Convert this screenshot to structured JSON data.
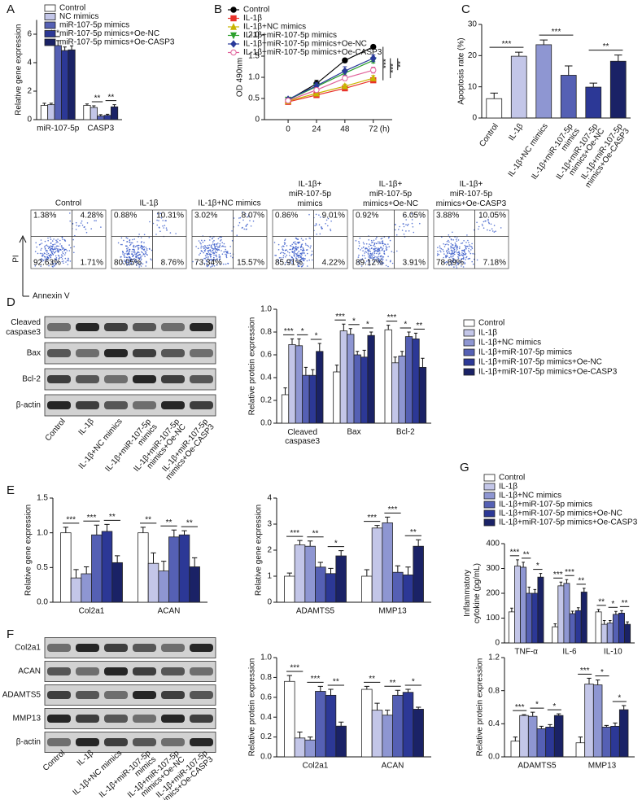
{
  "chart_data": [
    {
      "type": "bar",
      "panel_label": "A",
      "ylabel": "Relative gene expression",
      "categories": [
        "miR-107-5p",
        "CASP3"
      ],
      "series": [
        {
          "name": "Control",
          "color": "#ffffff",
          "values": [
            1.0,
            1.0
          ],
          "errors": [
            0.15,
            0.1
          ]
        },
        {
          "name": "NC mimics",
          "color": "#c3c6e8",
          "values": [
            1.05,
            0.85
          ],
          "errors": [
            0.1,
            0.12
          ]
        },
        {
          "name": "miR-107-5p mimics",
          "color": "#5560b4",
          "values": [
            5.2,
            0.25
          ],
          "errors": [
            0.35,
            0.1
          ]
        },
        {
          "name": "miR-107-5p mimics+Oe-NC",
          "color": "#2c3896",
          "values": [
            4.85,
            0.3
          ],
          "errors": [
            0.25,
            0.08
          ]
        },
        {
          "name": "miR-107-5p mimics+Oe-CASP3",
          "color": "#1a2266",
          "values": [
            4.9,
            0.9
          ],
          "errors": [
            0.28,
            0.15
          ]
        }
      ],
      "ylim": [
        0,
        7
      ],
      "yticks": [
        0,
        2,
        4,
        6
      ],
      "legend": "upper left",
      "annotations": [
        [
          null,
          "***",
          null
        ],
        [
          null,
          "**",
          "**"
        ]
      ]
    },
    {
      "type": "line",
      "panel_label": "B",
      "ylabel": "OD 490nm",
      "xlabel": "(h)",
      "x": [
        0,
        24,
        48,
        72
      ],
      "series": [
        {
          "name": "Control",
          "color": "#000000",
          "marker": "circle",
          "values": [
            0.46,
            0.85,
            1.4,
            1.72
          ],
          "errors": [
            0.03,
            0.08,
            0.05,
            0.04
          ]
        },
        {
          "name": "IL-1β",
          "color": "#e8322a",
          "marker": "square",
          "values": [
            0.42,
            0.58,
            0.74,
            0.93
          ],
          "errors": [
            0.02,
            0.04,
            0.05,
            0.05
          ]
        },
        {
          "name": "IL-1β+NC mimics",
          "color": "#c8b400",
          "marker": "triangle",
          "values": [
            0.44,
            0.62,
            0.79,
            0.98
          ],
          "errors": [
            0.03,
            0.05,
            0.05,
            0.06
          ]
        },
        {
          "name": "IL-1β+miR-107-5p mimics",
          "color": "#2ca02c",
          "marker": "triangle-down",
          "values": [
            0.47,
            0.78,
            1.1,
            1.4
          ],
          "errors": [
            0.03,
            0.06,
            0.08,
            0.06
          ]
        },
        {
          "name": "IL-1β+miR-107-5p mimics+Oe-NC",
          "color": "#2a3a9a",
          "marker": "diamond",
          "values": [
            0.48,
            0.8,
            1.15,
            1.45
          ],
          "errors": [
            0.03,
            0.07,
            0.1,
            0.08
          ]
        },
        {
          "name": "IL-1β+miR-107-5p mimics+Oe-CASP3",
          "color": "#e0609a",
          "marker": "open-circle",
          "values": [
            0.45,
            0.7,
            0.98,
            1.17
          ],
          "errors": [
            0.03,
            0.05,
            0.06,
            0.07
          ]
        }
      ],
      "xlim": [
        -20,
        88
      ],
      "xticks": [
        0,
        24,
        48,
        72
      ],
      "ylim": [
        0,
        2
      ],
      "yticks": [
        0,
        0.5,
        {
          "value": 1,
          "label": "1.0"
        },
        1.5,
        {
          "value": 2,
          "label": "2.0"
        }
      ],
      "legend": "top",
      "annotations": [
        "***",
        "***",
        "**"
      ]
    },
    {
      "type": "bar",
      "panel_label": "C",
      "ylabel": "Apoptosis rate (%)",
      "categories": [
        "Control",
        "IL-1β",
        "IL-1β+NC mimics",
        [
          "IL-1β+miR-107-5p",
          "mimics"
        ],
        [
          "IL-1β+miR-107-5p",
          "mimics+Oe-NC"
        ],
        [
          "IL-1β+miR-107-5p",
          "mimics+Oe-CASP3"
        ]
      ],
      "values": [
        6.2,
        19.8,
        23.5,
        13.7,
        9.9,
        18.2
      ],
      "errors": [
        1.8,
        1.3,
        1.5,
        3.0,
        1.3,
        2.0
      ],
      "colors": [
        "#ffffff",
        "#c3c6e8",
        "#8e96d2",
        "#5560b4",
        "#2c3896",
        "#1a2266"
      ],
      "ylim": [
        0,
        30
      ],
      "yticks": [
        0,
        10,
        20,
        30
      ],
      "annotations": [
        "***",
        "***",
        "**"
      ]
    },
    {
      "type": "bar",
      "ylabel": "Relative protein expression",
      "categories": [
        [
          "Cleaved",
          "caspase3"
        ],
        "Bax",
        "Bcl-2"
      ],
      "series": [
        {
          "name": "Control",
          "color": "#ffffff",
          "values": [
            0.25,
            0.45,
            0.82
          ],
          "errors": [
            0.06,
            0.06,
            0.04
          ]
        },
        {
          "name": "IL-1β",
          "color": "#c3c6e8",
          "values": [
            0.69,
            0.81,
            0.53
          ],
          "errors": [
            0.05,
            0.06,
            0.05
          ]
        },
        {
          "name": "IL-1β+NC mimics",
          "color": "#8e96d2",
          "values": [
            0.68,
            0.78,
            0.59
          ],
          "errors": [
            0.06,
            0.05,
            0.04
          ]
        },
        {
          "name": "IL-1β+miR-107-5p mimics",
          "color": "#5560b4",
          "values": [
            0.42,
            0.6,
            0.76
          ],
          "errors": [
            0.07,
            0.03,
            0.04
          ]
        },
        {
          "name": "IL-1β+miR-107-5p mimics+Oe-NC",
          "color": "#2c3896",
          "values": [
            0.42,
            0.58,
            0.74
          ],
          "errors": [
            0.05,
            0.06,
            0.05
          ]
        },
        {
          "name": "IL-1β+miR-107-5p mimics+Oe-CASP3",
          "color": "#1a2266",
          "values": [
            0.63,
            0.77,
            0.49
          ],
          "errors": [
            0.07,
            0.03,
            0.08
          ]
        }
      ],
      "ylim": [
        0,
        1
      ],
      "yticks": [
        {
          "value": 0,
          "label": "0.0"
        },
        0.2,
        0.4,
        0.6,
        0.8,
        {
          "value": 1,
          "label": "1.0"
        }
      ],
      "legend": "right",
      "annotations": [
        [
          "***",
          "*",
          "*"
        ],
        [
          "***",
          "*",
          "*"
        ],
        [
          "***",
          "*",
          "**"
        ]
      ]
    },
    {
      "type": "bar",
      "panel_label": "E",
      "ylabel": "Relative gene expression",
      "categories": [
        "Col2a1",
        "ACAN"
      ],
      "series": [
        {
          "color": "#ffffff",
          "values": [
            1.0,
            1.0
          ],
          "errors": [
            0.08,
            0.08
          ]
        },
        {
          "color": "#c3c6e8",
          "values": [
            0.35,
            0.56
          ],
          "errors": [
            0.12,
            0.15
          ]
        },
        {
          "color": "#8e96d2",
          "values": [
            0.41,
            0.45
          ],
          "errors": [
            0.1,
            0.14
          ]
        },
        {
          "color": "#5560b4",
          "values": [
            0.97,
            0.94
          ],
          "errors": [
            0.14,
            0.1
          ]
        },
        {
          "color": "#2c3896",
          "values": [
            1.02,
            0.97
          ],
          "errors": [
            0.1,
            0.06
          ]
        },
        {
          "color": "#1a2266",
          "values": [
            0.57,
            0.51
          ],
          "errors": [
            0.1,
            0.13
          ]
        }
      ],
      "ylim": [
        0,
        1.5
      ],
      "yticks": [
        {
          "value": 0,
          "label": "0.0"
        },
        0.5,
        {
          "value": 1,
          "label": "1.0"
        },
        1.5
      ],
      "annotations": [
        [
          "***",
          "***",
          "**"
        ],
        [
          "**",
          "**",
          "**"
        ]
      ]
    },
    {
      "type": "bar",
      "ylabel": "Relative gene expression",
      "categories": [
        "ADAMTS5",
        "MMP13"
      ],
      "series": [
        {
          "color": "#ffffff",
          "values": [
            1.0,
            1.0
          ],
          "errors": [
            0.12,
            0.25
          ]
        },
        {
          "color": "#c3c6e8",
          "values": [
            2.2,
            2.85
          ],
          "errors": [
            0.17,
            0.1
          ]
        },
        {
          "color": "#8e96d2",
          "values": [
            2.15,
            3.05
          ],
          "errors": [
            0.2,
            0.22
          ]
        },
        {
          "color": "#5560b4",
          "values": [
            1.35,
            1.15
          ],
          "errors": [
            0.18,
            0.25
          ]
        },
        {
          "color": "#2c3896",
          "values": [
            1.1,
            1.05
          ],
          "errors": [
            0.2,
            0.3
          ]
        },
        {
          "color": "#1a2266",
          "values": [
            1.78,
            2.15
          ],
          "errors": [
            0.2,
            0.25
          ]
        }
      ],
      "ylim": [
        0,
        4
      ],
      "yticks": [
        0,
        1,
        2,
        3,
        4
      ],
      "annotations": [
        [
          "***",
          "**",
          "*"
        ],
        [
          "***",
          "***",
          "**"
        ]
      ]
    },
    {
      "type": "bar",
      "panel_label": "G",
      "ylabel": [
        "Inflammatory",
        "cytokine (pg/mL)"
      ],
      "categories": [
        "TNF-α",
        "IL-6",
        "IL-10"
      ],
      "series": [
        {
          "name": "Control",
          "color": "#ffffff",
          "values": [
            125,
            65,
            125
          ],
          "errors": [
            15,
            12,
            10
          ]
        },
        {
          "name": "IL-1β",
          "color": "#c3c6e8",
          "values": [
            310,
            230,
            75
          ],
          "errors": [
            25,
            15,
            15
          ]
        },
        {
          "name": "IL-1β+NC mimics",
          "color": "#8e96d2",
          "values": [
            305,
            240,
            80
          ],
          "errors": [
            20,
            15,
            10
          ]
        },
        {
          "name": "IL-1β+miR-107-5p mimics",
          "color": "#5560b4",
          "values": [
            200,
            118,
            115
          ],
          "errors": [
            25,
            10,
            12
          ]
        },
        {
          "name": "IL-1β+miR-107-5p mimics+Oe-NC",
          "color": "#2c3896",
          "values": [
            200,
            130,
            120
          ],
          "errors": [
            15,
            12,
            10
          ]
        },
        {
          "name": "IL-1β+miR-107-5p mimics+Oe-CASP3",
          "color": "#1a2266",
          "values": [
            265,
            205,
            75
          ],
          "errors": [
            15,
            15,
            10
          ]
        }
      ],
      "ylim": [
        0,
        400
      ],
      "yticks": [
        0,
        100,
        200,
        300,
        400
      ],
      "legend": "top",
      "annotations": [
        [
          "***",
          "**",
          "*"
        ],
        [
          "***",
          "***",
          "**"
        ],
        [
          "**",
          "*",
          "**"
        ]
      ]
    },
    {
      "type": "bar",
      "ylabel": "Relative protein expression",
      "categories": [
        "Col2a1",
        "ACAN"
      ],
      "series": [
        {
          "color": "#ffffff",
          "values": [
            0.76,
            0.68
          ],
          "errors": [
            0.06,
            0.03
          ]
        },
        {
          "color": "#c3c6e8",
          "values": [
            0.19,
            0.47
          ],
          "errors": [
            0.06,
            0.07
          ]
        },
        {
          "color": "#8e96d2",
          "values": [
            0.17,
            0.42
          ],
          "errors": [
            0.03,
            0.05
          ]
        },
        {
          "color": "#5560b4",
          "values": [
            0.66,
            0.62
          ],
          "errors": [
            0.05,
            0.05
          ]
        },
        {
          "color": "#2c3896",
          "values": [
            0.62,
            0.65
          ],
          "errors": [
            0.06,
            0.03
          ]
        },
        {
          "color": "#1a2266",
          "values": [
            0.31,
            0.48
          ],
          "errors": [
            0.04,
            0.02
          ]
        }
      ],
      "ylim": [
        0,
        1
      ],
      "yticks": [
        {
          "value": 0,
          "label": "0.0"
        },
        0.2,
        0.4,
        0.6,
        0.8,
        {
          "value": 1,
          "label": "1.0"
        }
      ],
      "annotations": [
        [
          "***",
          "***",
          "**"
        ],
        [
          "**",
          "**",
          "*"
        ]
      ]
    },
    {
      "type": "bar",
      "ylabel": "Relative protein expression",
      "categories": [
        "ADAMTS5",
        "MMP13"
      ],
      "series": [
        {
          "color": "#ffffff",
          "values": [
            0.19,
            0.17
          ],
          "errors": [
            0.05,
            0.07
          ]
        },
        {
          "color": "#c3c6e8",
          "values": [
            0.5,
            0.88
          ],
          "errors": [
            0.01,
            0.07
          ]
        },
        {
          "color": "#8e96d2",
          "values": [
            0.49,
            0.87
          ],
          "errors": [
            0.05,
            0.06
          ]
        },
        {
          "color": "#5560b4",
          "values": [
            0.34,
            0.36
          ],
          "errors": [
            0.03,
            0.02
          ]
        },
        {
          "color": "#2c3896",
          "values": [
            0.36,
            0.37
          ],
          "errors": [
            0.03,
            0.04
          ]
        },
        {
          "color": "#1a2266",
          "values": [
            0.5,
            0.57
          ],
          "errors": [
            0.02,
            0.05
          ]
        }
      ],
      "ylim": [
        0,
        1.2
      ],
      "yticks": [
        {
          "value": 0,
          "label": "0.0"
        },
        0.4,
        0.8,
        1.2
      ],
      "annotations": [
        [
          "***",
          "*",
          "*"
        ],
        [
          "***",
          "*",
          "*"
        ]
      ]
    }
  ],
  "flow_cytometry": {
    "y_label": "PI",
    "x_label": "Annexin V",
    "plots": [
      {
        "title": "Control",
        "quadrants": [
          "1.38%",
          "4.28%",
          "92.63%",
          "1.71%"
        ]
      },
      {
        "title": "IL-1β",
        "quadrants": [
          "0.88%",
          "10.31%",
          "80.05%",
          "8.76%"
        ]
      },
      {
        "title": "IL-1β+NC mimics",
        "quadrants": [
          "3.02%",
          "8.07%",
          "73.34%",
          "15.57%"
        ]
      },
      {
        "title": [
          "IL-1β+",
          "miR-107-5p",
          "mimics"
        ],
        "quadrants": [
          "0.86%",
          "9.01%",
          "85.91%",
          "4.22%"
        ]
      },
      {
        "title": [
          "IL-1β+",
          "miR-107-5p",
          "mimics+Oe-NC"
        ],
        "quadrants": [
          "0.92%",
          "6.05%",
          "89.12%",
          "3.91%"
        ]
      },
      {
        "title": [
          "IL-1β+",
          "miR-107-5p",
          "mimics+Oe-CASP3"
        ],
        "quadrants": [
          "3.88%",
          "10.05%",
          "78.89%",
          "7.18%"
        ]
      }
    ]
  },
  "blots": [
    {
      "panel_label": "D",
      "rows": [
        [
          "Cleaved",
          "caspase3"
        ],
        "Bax",
        "Bcl-2",
        "β-actin"
      ],
      "lanes": [
        "Control",
        "IL-1β",
        "IL-1β+NC mimics",
        [
          "IL-1β+miR-107-5p",
          "mimics"
        ],
        [
          "IL-1β+miR-107-5p",
          "mimics+Oe-NC"
        ],
        [
          "IL-1β+miR-107-5p",
          "mimics+Oe-CASP3"
        ]
      ]
    },
    {
      "panel_label": "F",
      "rows": [
        "Col2a1",
        "ACAN",
        "ADAMTS5",
        "MMP13",
        "β-actin"
      ],
      "lanes": [
        "Control",
        "IL-1β",
        "IL-1β+NC mimics",
        [
          "IL-1β+miR-107-5p",
          "mimics"
        ],
        [
          "IL-1β+miR-107-5p",
          "mimics+Oe-NC"
        ],
        [
          "IL-1β+miR-107-5p",
          "mimics+Oe-CASP3"
        ]
      ]
    }
  ]
}
